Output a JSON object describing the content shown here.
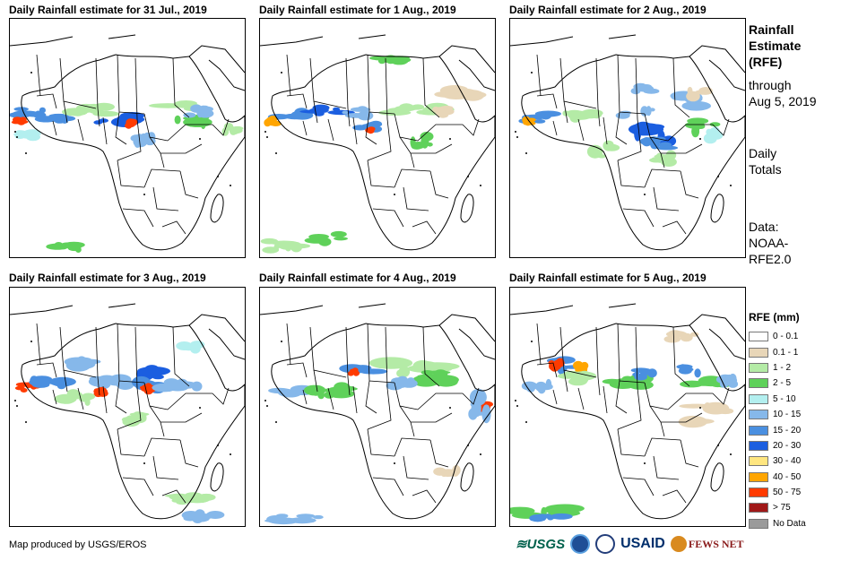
{
  "panels": [
    {
      "title": "Daily Rainfall estimate for 31 Jul., 2019"
    },
    {
      "title": "Daily Rainfall estimate for 1 Aug., 2019"
    },
    {
      "title": "Daily Rainfall estimate for 2 Aug., 2019"
    },
    {
      "title": "Daily Rainfall estimate for 3 Aug., 2019"
    },
    {
      "title": "Daily Rainfall estimate for 4 Aug., 2019"
    },
    {
      "title": "Daily Rainfall estimate for 5 Aug., 2019"
    }
  ],
  "side": {
    "title_line1": "Rainfall",
    "title_line2": "Estimate",
    "title_line3": "(RFE)",
    "sub_line1": "through",
    "sub_line2": "Aug 5, 2019",
    "daily_line1": "Daily",
    "daily_line2": "Totals",
    "data_line1": "Data:",
    "data_line2": "NOAA-",
    "data_line3": "RFE2.0"
  },
  "legend": {
    "title": "RFE (mm)",
    "items": [
      {
        "label": "0 - 0.1",
        "color": "#ffffff"
      },
      {
        "label": "0.1 - 1",
        "color": "#e8d6b8"
      },
      {
        "label": "1 - 2",
        "color": "#b4eba6"
      },
      {
        "label": "2 - 5",
        "color": "#5fd15a"
      },
      {
        "label": "5 - 10",
        "color": "#b3efef"
      },
      {
        "label": "10 - 15",
        "color": "#86b8ea"
      },
      {
        "label": "15 - 20",
        "color": "#4a8fe0"
      },
      {
        "label": "20 - 30",
        "color": "#1b5ee0"
      },
      {
        "label": "30 - 40",
        "color": "#ffe680"
      },
      {
        "label": "40 - 50",
        "color": "#ffa500"
      },
      {
        "label": "50 - 75",
        "color": "#ff3b00"
      },
      {
        "label": "> 75",
        "color": "#a01818"
      },
      {
        "label": "No Data",
        "color": "#9a9a9a"
      }
    ]
  },
  "credit": "Map produced by USGS/EROS",
  "logos": {
    "usgs": "≋USGS",
    "usaid": "USAID",
    "fews": "FEWS NET"
  }
}
